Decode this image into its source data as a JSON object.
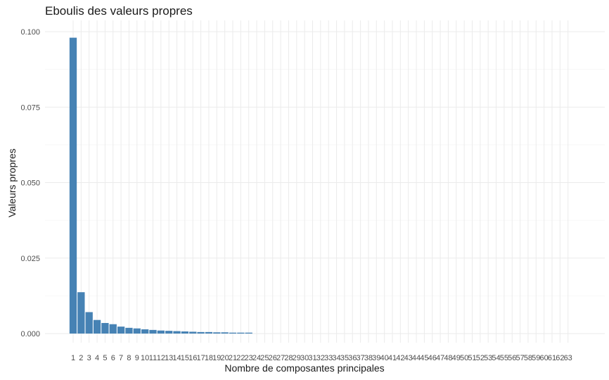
{
  "chart_data": {
    "type": "bar",
    "title": "Eboulis des valeurs propres",
    "xlabel": "Nombre de composantes principales",
    "ylabel": "Valeurs propres",
    "ylim": [
      0,
      0.1
    ],
    "yticks": [
      "0.000",
      "0.025",
      "0.050",
      "0.075",
      "0.100"
    ],
    "grid": true,
    "bar_color": "#4682B4",
    "categories": [
      "1",
      "2",
      "3",
      "4",
      "5",
      "6",
      "7",
      "8",
      "9",
      "10",
      "11",
      "12",
      "13",
      "14",
      "15",
      "16",
      "17",
      "18",
      "19",
      "20",
      "21",
      "22",
      "23",
      "24",
      "25",
      "26",
      "27",
      "28",
      "29",
      "30",
      "31",
      "32",
      "33",
      "34",
      "35",
      "36",
      "37",
      "38",
      "39",
      "40",
      "41",
      "42",
      "43",
      "44",
      "45",
      "46",
      "47",
      "48",
      "49",
      "50",
      "51",
      "52",
      "53",
      "54",
      "55",
      "56",
      "57",
      "58",
      "59",
      "60",
      "61",
      "62",
      "63"
    ],
    "values": [
      0.098,
      0.0137,
      0.0071,
      0.0045,
      0.0035,
      0.0031,
      0.0023,
      0.0019,
      0.0017,
      0.0014,
      0.0012,
      0.001,
      0.0009,
      0.0008,
      0.0007,
      0.0006,
      0.0005,
      0.0005,
      0.0004,
      0.0004,
      0.0003,
      0.0003,
      0.0003,
      0.0,
      0.0,
      0.0,
      0.0,
      0.0,
      0.0,
      0.0,
      0.0,
      0.0,
      0.0,
      0.0,
      0.0,
      0.0,
      0.0,
      0.0,
      0.0,
      0.0,
      0.0,
      0.0,
      0.0,
      0.0,
      0.0,
      0.0,
      0.0,
      0.0,
      0.0,
      0.0,
      0.0,
      0.0,
      0.0,
      0.0,
      0.0,
      0.0,
      0.0,
      0.0,
      0.0,
      0.0,
      0.0,
      0.0,
      0.0
    ]
  }
}
